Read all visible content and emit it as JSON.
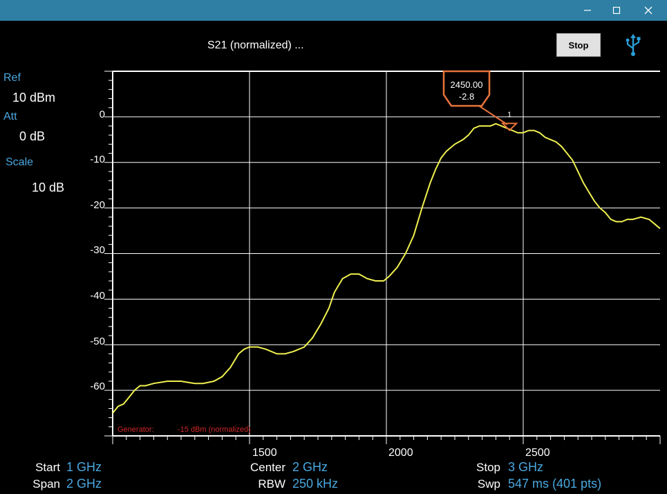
{
  "window": {
    "minimize_icon": "minimize-icon",
    "maximize_icon": "maximize-icon",
    "close_icon": "close-icon"
  },
  "header": {
    "title": "S21 (normalized) ...",
    "stop_label": "Stop",
    "usb_icon": "usb-icon"
  },
  "sidebar": {
    "ref_label": "Ref",
    "ref_value": "10  dBm",
    "att_label": "Att",
    "att_value": "0   dB",
    "scale_label": "Scale",
    "scale_value": "10  dB"
  },
  "generator": {
    "label": "Generator:",
    "value": "-15 dBm (normalized)"
  },
  "marker": {
    "freq": "2450.00",
    "level": "-2.8",
    "number": "1"
  },
  "footer": {
    "start_label": "Start",
    "start_value": "1 GHz",
    "span_label": "Span",
    "span_value": "2 GHz",
    "center_label": "Center",
    "center_value": "2 GHz",
    "rbw_label": "RBW",
    "rbw_value": "250 kHz",
    "stop_label": "Stop",
    "stop_value": "3 GHz",
    "swp_label": "Swp",
    "swp_value": "547   ms (401 pts)"
  },
  "chart_data": {
    "type": "line",
    "title": "S21 (normalized) ...",
    "xlabel": "",
    "ylabel": "",
    "xlim": [
      1000,
      3000
    ],
    "ylim": [
      -70,
      10
    ],
    "x_ticks": [
      "1500",
      "2000",
      "2500"
    ],
    "y_ticks": [
      "0",
      "-10",
      "-20",
      "-30",
      "-40",
      "-50",
      "-60"
    ],
    "grid": true,
    "trace_color": "#f0f050",
    "series": [
      {
        "x": [
          1000,
          1020,
          1040,
          1060,
          1080,
          1100,
          1120,
          1150,
          1200,
          1250,
          1300,
          1330,
          1370,
          1400,
          1430,
          1460,
          1480,
          1500,
          1530,
          1560,
          1600,
          1630,
          1660,
          1700,
          1730,
          1760,
          1790,
          1810,
          1840,
          1870,
          1900,
          1930,
          1960,
          1990,
          2010,
          2040,
          2070,
          2100,
          2130,
          2160,
          2180,
          2200,
          2220,
          2250,
          2280,
          2300,
          2320,
          2340,
          2360,
          2380,
          2400,
          2420,
          2440,
          2460,
          2480,
          2500,
          2520,
          2540,
          2560,
          2580,
          2600,
          2620,
          2640,
          2660,
          2680,
          2700,
          2720,
          2740,
          2760,
          2780,
          2800,
          2820,
          2840,
          2860,
          2880,
          2900,
          2930,
          2960,
          2980,
          3000
        ],
        "y": [
          -65,
          -63.5,
          -63,
          -61.5,
          -60,
          -59,
          -59,
          -58.5,
          -58,
          -58,
          -58.5,
          -58.5,
          -58,
          -57,
          -55,
          -52,
          -51,
          -50.5,
          -50.5,
          -51,
          -52,
          -52,
          -51.5,
          -50.5,
          -48.5,
          -45.5,
          -42,
          -38.5,
          -35.5,
          -34.5,
          -34.5,
          -35.5,
          -36,
          -36,
          -35,
          -33,
          -30,
          -26,
          -20,
          -14.5,
          -11.5,
          -9,
          -7.5,
          -6,
          -5,
          -4,
          -2.5,
          -2,
          -2,
          -2,
          -1.5,
          -2,
          -2.5,
          -3,
          -3.5,
          -3.5,
          -3,
          -3,
          -3.5,
          -4.5,
          -5,
          -5.5,
          -6.5,
          -8,
          -9.5,
          -12,
          -14.5,
          -16.5,
          -18.5,
          -20,
          -21,
          -22.5,
          -23,
          -23,
          -22.5,
          -22.5,
          -22,
          -22.5,
          -23.5,
          -24.5
        ]
      }
    ],
    "marker": {
      "x": 2450,
      "y": -2.8,
      "label": "1"
    }
  }
}
